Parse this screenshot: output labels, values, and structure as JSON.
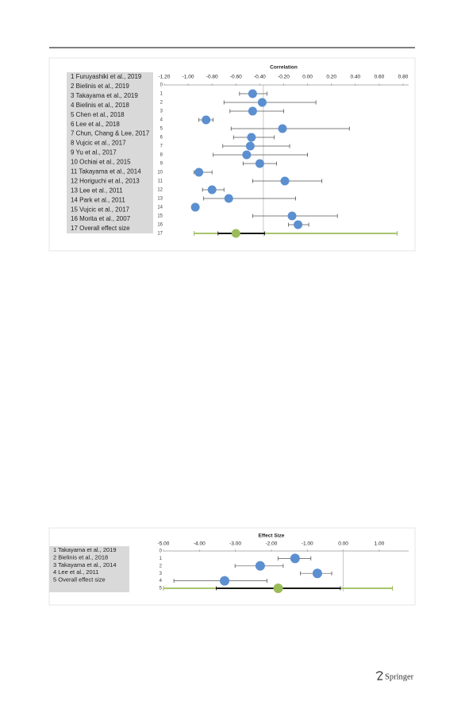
{
  "chart_data": [
    {
      "type": "forest",
      "x_label": "Correlation",
      "xlim": [
        -1.2,
        0.8
      ],
      "xticks": [
        {
          "value": -1.2,
          "label": "-1.20"
        },
        {
          "value": -1.0,
          "label": "-1.00"
        },
        {
          "value": -0.8,
          "label": "-0.80"
        },
        {
          "value": -0.6,
          "label": "-0.60"
        },
        {
          "value": -0.4,
          "label": "-0.40"
        },
        {
          "value": -0.2,
          "label": "-0.20"
        },
        {
          "value": 0,
          "label": "0.00"
        },
        {
          "value": 0.2,
          "label": "0.20"
        },
        {
          "value": 0.4,
          "label": "0.40"
        },
        {
          "value": 0.6,
          "label": "0.60"
        },
        {
          "value": 0.8,
          "label": "0.80"
        }
      ],
      "rows": [
        0,
        1,
        2,
        3,
        4,
        5,
        6,
        7,
        8,
        9,
        10,
        11,
        12,
        13,
        14,
        15,
        16,
        17
      ],
      "studies": [
        "1 Furuyashiki et al., 2019",
        "2 Bielinis et al., 2019",
        "3 Takayama et al., 2019",
        "4 Bielinis et al., 2018",
        "5 Chen et al., 2018",
        "6 Lee et al., 2018",
        "7 Chun, Chang & Lee, 2017",
        "8 Vujcic et al., 2017",
        "9 Yu et al., 2017",
        "10 Ochiai et al., 2015",
        "11 Takayama et al., 2014",
        "12 Horiguchi et al., 2013",
        "13 Lee et al., 2011",
        "14 Park et al., 2011",
        "15 Vujcic et al., 2017",
        "16 Morita et al., 2007",
        "17 Overall effect size"
      ],
      "values": [
        -0.46,
        -0.38,
        -0.46,
        -0.85,
        -0.21,
        -0.47,
        -0.48,
        -0.51,
        -0.4,
        -0.91,
        -0.19,
        -0.8,
        -0.66,
        -0.94,
        -0.13,
        -0.08,
        -0.6
      ],
      "ci_lower": [
        -0.57,
        -0.7,
        -0.65,
        -0.91,
        -0.64,
        -0.62,
        -0.71,
        -0.79,
        -0.54,
        -0.95,
        -0.46,
        -0.88,
        -0.87,
        null,
        -0.46,
        -0.16,
        -0.75
      ],
      "ci_upper": [
        -0.34,
        0.07,
        -0.2,
        -0.79,
        0.35,
        -0.28,
        -0.15,
        0.0,
        -0.26,
        -0.8,
        0.12,
        -0.7,
        -0.1,
        null,
        0.25,
        0.01,
        -0.36
      ],
      "prediction_interval": [
        -0.95,
        0.75
      ],
      "reference_line": -0.37,
      "color": "#5b8fd0",
      "overall_color": "#9bbb59"
    },
    {
      "type": "forest",
      "x_label": "Effect Size",
      "xlim": [
        -5.0,
        1.4
      ],
      "xticks": [
        {
          "value": -5,
          "label": "-5.00"
        },
        {
          "value": -4,
          "label": "-4.00"
        },
        {
          "value": -3,
          "label": "-3.00"
        },
        {
          "value": -2,
          "label": "-2.00"
        },
        {
          "value": -1,
          "label": "-1.00"
        },
        {
          "value": 0,
          "label": "0.00"
        },
        {
          "value": 1,
          "label": "1.00"
        }
      ],
      "rows": [
        0,
        1,
        2,
        3,
        4,
        5
      ],
      "studies": [
        "1 Takayama et al., 2019",
        "2 Bielinis et al., 2018",
        "3 Takayama et al., 2014",
        "4 Lee et al., 2011",
        "5 Overall effect size"
      ],
      "values": [
        -1.34,
        -2.31,
        -0.72,
        -3.3,
        -1.81
      ],
      "ci_lower": [
        -1.81,
        -3.01,
        -1.19,
        -4.71,
        -3.53
      ],
      "ci_upper": [
        -0.9,
        -1.67,
        -0.32,
        -2.12,
        -0.08
      ],
      "prediction_interval": [
        -5.0,
        1.37
      ],
      "reference_line": 0,
      "color": "#5b8fd0",
      "overall_color": "#9bbb59"
    }
  ],
  "publisher": "Springer"
}
